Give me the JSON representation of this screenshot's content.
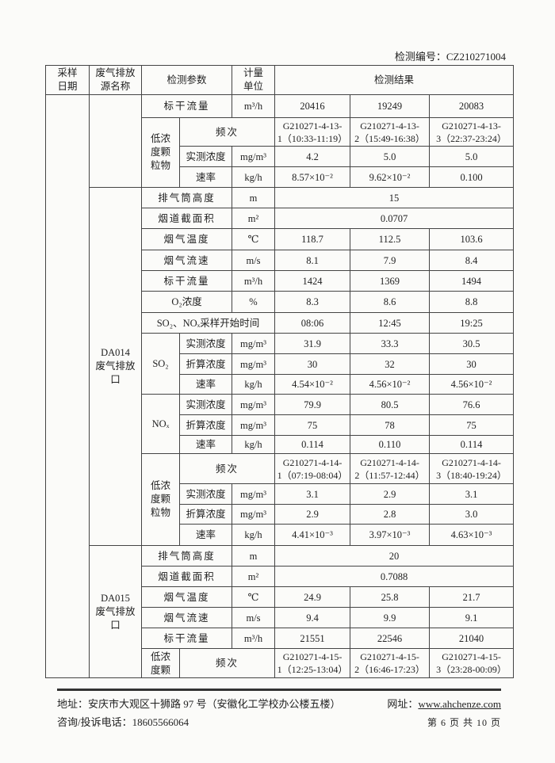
{
  "report_no": "检测编号：CZ210271004",
  "header": {
    "date": "采样\n日期",
    "source": "废气排放\n源名称",
    "param": "检测参数",
    "unit": "计量\n单位",
    "result": "检测结果"
  },
  "cont": {
    "flow": {
      "label": "标干流量",
      "unit": "m³/h",
      "values": [
        "20416",
        "19249",
        "20083"
      ]
    },
    "pm": {
      "group": "低浓\n度颗\n粒物",
      "freq": {
        "label": "频次",
        "values": [
          "G210271-4-13-\n1（10:33-11:19）",
          "G210271-4-13-\n2（15:49-16:38）",
          "G210271-4-13-\n3（22:37-23:24）"
        ]
      },
      "conc": {
        "label": "实测浓度",
        "unit": "mg/m³",
        "values": [
          "4.2",
          "5.0",
          "5.0"
        ]
      },
      "rate": {
        "label": "速率",
        "unit": "kg/h",
        "values": [
          "8.57×10⁻²",
          "9.62×10⁻²",
          "0.100"
        ]
      }
    }
  },
  "da014": {
    "name": "DA014\n废气排放\n口",
    "height": {
      "label": "排气筒高度",
      "unit": "m",
      "value": "15"
    },
    "area": {
      "label": "烟道截面积",
      "unit": "m²",
      "value": "0.0707"
    },
    "temp": {
      "label": "烟气温度",
      "unit": "℃",
      "values": [
        "118.7",
        "112.5",
        "103.6"
      ]
    },
    "speed": {
      "label": "烟气流速",
      "unit": "m/s",
      "values": [
        "8.1",
        "7.9",
        "8.4"
      ]
    },
    "flow": {
      "label": "标干流量",
      "unit": "m³/h",
      "values": [
        "1424",
        "1369",
        "1494"
      ]
    },
    "o2": {
      "label": "O₂浓度",
      "unit": "%",
      "values": [
        "8.3",
        "8.6",
        "8.8"
      ]
    },
    "start": {
      "label": "SO₂、NOₓ采样开始时间",
      "values": [
        "08:06",
        "12:45",
        "19:25"
      ]
    },
    "so2": {
      "group": "SO₂",
      "conc": {
        "label": "实测浓度",
        "unit": "mg/m³",
        "values": [
          "31.9",
          "33.3",
          "30.5"
        ]
      },
      "conv": {
        "label": "折算浓度",
        "unit": "mg/m³",
        "values": [
          "30",
          "32",
          "30"
        ]
      },
      "rate": {
        "label": "速率",
        "unit": "kg/h",
        "values": [
          "4.54×10⁻²",
          "4.56×10⁻²",
          "4.56×10⁻²"
        ]
      }
    },
    "nox": {
      "group": "NOₓ",
      "conc": {
        "label": "实测浓度",
        "unit": "mg/m³",
        "values": [
          "79.9",
          "80.5",
          "76.6"
        ]
      },
      "conv": {
        "label": "折算浓度",
        "unit": "mg/m³",
        "values": [
          "75",
          "78",
          "75"
        ]
      },
      "rate": {
        "label": "速率",
        "unit": "kg/h",
        "values": [
          "0.114",
          "0.110",
          "0.114"
        ]
      }
    },
    "pm": {
      "group": "低浓\n度颗\n粒物",
      "freq": {
        "label": "频次",
        "values": [
          "G210271-4-14-\n1（07:19-08:04）",
          "G210271-4-14-\n2（11:57-12:44）",
          "G210271-4-14-\n3（18:40-19:24）"
        ]
      },
      "conc": {
        "label": "实测浓度",
        "unit": "mg/m³",
        "values": [
          "3.1",
          "2.9",
          "3.1"
        ]
      },
      "conv": {
        "label": "折算浓度",
        "unit": "mg/m³",
        "values": [
          "2.9",
          "2.8",
          "3.0"
        ]
      },
      "rate": {
        "label": "速率",
        "unit": "kg/h",
        "values": [
          "4.41×10⁻³",
          "3.97×10⁻³",
          "4.63×10⁻³"
        ]
      }
    }
  },
  "da015": {
    "name": "DA015\n废气排放\n口",
    "height": {
      "label": "排气筒高度",
      "unit": "m",
      "value": "20"
    },
    "area": {
      "label": "烟道截面积",
      "unit": "m²",
      "value": "0.7088"
    },
    "temp": {
      "label": "烟气温度",
      "unit": "℃",
      "values": [
        "24.9",
        "25.8",
        "21.7"
      ]
    },
    "speed": {
      "label": "烟气流速",
      "unit": "m/s",
      "values": [
        "9.4",
        "9.9",
        "9.1"
      ]
    },
    "flow": {
      "label": "标干流量",
      "unit": "m³/h",
      "values": [
        "21551",
        "22546",
        "21040"
      ]
    },
    "pm": {
      "group": "低浓\n度颗",
      "freq": {
        "label": "频次",
        "values": [
          "G210271-4-15-\n1（12:25-13:04）",
          "G210271-4-15-\n2（16:46-17:23）",
          "G210271-4-15-\n3（23:28-00:09）"
        ]
      }
    }
  },
  "footer": {
    "address": "地址：安庆市大观区十狮路 97 号（安徽化工学校办公楼五楼）",
    "web_label": "网址：",
    "web": "www.ahchenze.com",
    "phone": "咨询/投诉电话：18605566064",
    "page": "第 6 页 共 10 页"
  }
}
